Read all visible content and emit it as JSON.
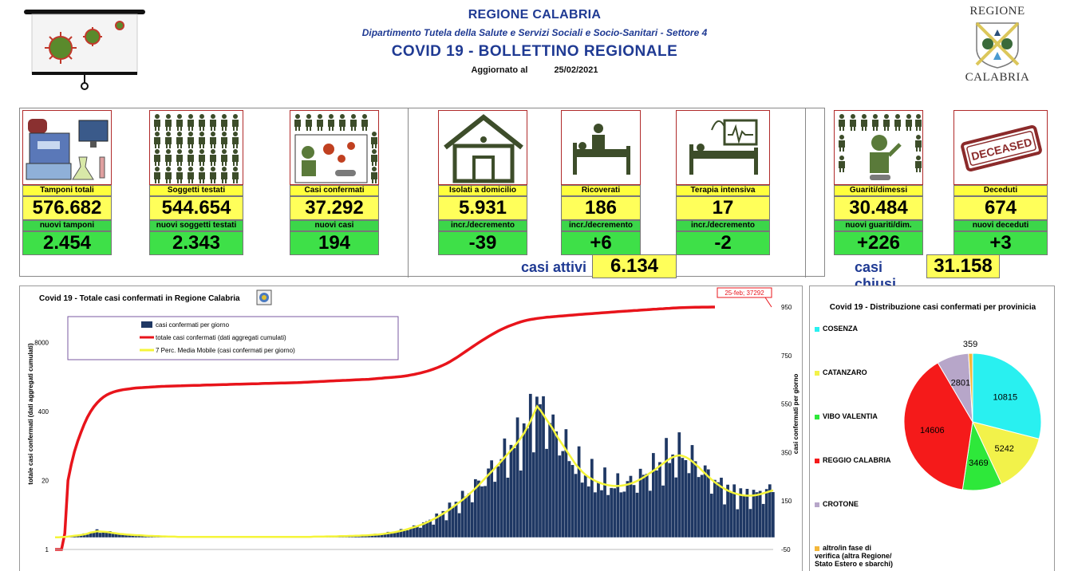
{
  "header": {
    "region": "REGIONE CALABRIA",
    "department": "Dipartimento Tutela della Salute e Servizi Sociali e Socio-Sanitari - Settore 4",
    "title": "COVID 19 - BOLLETTINO REGIONALE",
    "updated_label": "Aggiornato al",
    "updated_date": "25/02/2021",
    "crest_top": "REGIONE",
    "crest_bottom": "CALABRIA"
  },
  "stats": [
    {
      "label": "Tamponi totali",
      "value": "576.682",
      "sub_label": "nuovi tamponi",
      "sub_value": "2.454",
      "icon": "lab-equipment-icon"
    },
    {
      "label": "Soggetti testati",
      "value": "544.654",
      "sub_label": "nuovi soggetti testati",
      "sub_value": "2.343",
      "icon": "people-grid-icon"
    },
    {
      "label": "Casi confermati",
      "value": "37.292",
      "sub_label": "nuovi casi",
      "sub_value": "194",
      "icon": "infected-person-icon"
    },
    {
      "label": "Isolati a domicilio",
      "value": "5.931",
      "sub_label": "incr./decremento",
      "sub_value": "-39",
      "icon": "house-icon"
    },
    {
      "label": "Ricoverati",
      "value": "186",
      "sub_label": "incr./decremento",
      "sub_value": "+6",
      "icon": "hospital-bed-icon"
    },
    {
      "label": "Terapia intensiva",
      "value": "17",
      "sub_label": "incr./decremento",
      "sub_value": "-2",
      "icon": "icu-monitor-icon"
    },
    {
      "label": "Guariti/dimessi",
      "value": "30.484",
      "sub_label": "nuovi guariti/dim.",
      "sub_value": "+226",
      "icon": "recovered-person-icon"
    },
    {
      "label": "Deceduti",
      "value": "674",
      "sub_label": "nuovi deceduti",
      "sub_value": "+3",
      "icon": "deceased-stamp-icon"
    }
  ],
  "summary": {
    "active_label": "casi attivi",
    "active_value": "6.134",
    "closed_label": "casi chiusi",
    "closed_value": "31.158"
  },
  "deceased_stamp": "DECEASED",
  "colors": {
    "yellow": "#ffff5a",
    "green": "#3ee048",
    "blue": "#1f3a93",
    "bar": "#1f3864",
    "cumulative": "#e8141b",
    "moving_avg": "#f5f53a"
  },
  "chart_data": [
    {
      "type": "bar",
      "title": "Covid 19 - Totale casi confermati in Regione Calabria",
      "ylabel": "totale casi confermati (dati aggregati cumulati)",
      "y2label": "casi confermati  per giorno",
      "yscale": "log",
      "y_ticks": [
        "1",
        "20",
        "400",
        "8000"
      ],
      "y2_ticks": [
        "-50",
        "150",
        "350",
        "550",
        "750",
        "950"
      ],
      "ylim": [
        1,
        37292
      ],
      "y2lim": [
        -50,
        950
      ],
      "grid": false,
      "legend_position": "top-left",
      "annotation": "25-feb; 37292",
      "series": [
        {
          "name": "casi confermati per giorno",
          "kind": "bar",
          "axis": "right",
          "values": [
            0,
            0,
            1,
            2,
            3,
            5,
            7,
            8,
            10,
            12,
            15,
            20,
            22,
            25,
            24,
            23,
            22,
            20,
            18,
            16,
            14,
            13,
            12,
            11,
            10,
            9,
            9,
            8,
            7,
            6,
            6,
            5,
            5,
            4,
            4,
            3,
            3,
            3,
            2,
            2,
            2,
            2,
            2,
            2,
            2,
            2,
            2,
            2,
            2,
            2,
            2,
            2,
            2,
            2,
            2,
            2,
            2,
            2,
            2,
            2,
            2,
            2,
            2,
            2,
            2,
            2,
            2,
            2,
            2,
            2,
            2,
            2,
            2,
            2,
            2,
            2,
            2,
            2,
            2,
            2,
            3,
            3,
            3,
            3,
            4,
            4,
            4,
            4,
            5,
            5,
            5,
            6,
            6,
            7,
            7,
            8,
            8,
            9,
            10,
            11,
            12,
            13,
            15,
            17,
            19,
            21,
            24,
            27,
            30,
            34,
            38,
            42,
            46,
            51,
            56,
            62,
            68,
            75,
            82,
            90,
            98,
            106,
            115,
            125,
            135,
            145,
            155,
            166,
            178,
            190,
            203,
            216,
            230,
            244,
            258,
            272,
            286,
            300,
            315,
            330,
            345,
            360,
            375,
            392,
            410,
            430,
            455,
            480,
            510,
            540,
            525,
            505,
            485,
            465,
            445,
            420,
            400,
            380,
            360,
            340,
            320,
            300,
            285,
            270,
            258,
            248,
            240,
            233,
            227,
            222,
            218,
            215,
            213,
            212,
            212,
            213,
            215,
            218,
            222,
            227,
            233,
            240,
            248,
            257,
            266,
            275,
            285,
            295,
            305,
            315,
            324,
            331,
            336,
            338,
            336,
            331,
            323,
            313,
            301,
            289,
            276,
            263,
            250,
            238,
            227,
            217,
            208,
            200,
            193,
            187,
            182,
            178,
            175,
            173,
            172,
            172,
            173,
            175,
            178,
            182,
            186,
            190,
            194
          ]
        },
        {
          "name": "totale casi confermati (dati aggregati cumulati)",
          "kind": "line",
          "axis": "left",
          "values": [
            1,
            1,
            1,
            2,
            20,
            40,
            70,
            110,
            160,
            230,
            310,
            400,
            490,
            580,
            670,
            750,
            820,
            880,
            930,
            970,
            1000,
            1030,
            1050,
            1070,
            1090,
            1110,
            1120,
            1130,
            1140,
            1150,
            1160,
            1170,
            1180,
            1190,
            1195,
            1200,
            1205,
            1210,
            1215,
            1220,
            1225,
            1230,
            1235,
            1240,
            1245,
            1250,
            1255,
            1260,
            1265,
            1270,
            1275,
            1280,
            1285,
            1290,
            1295,
            1300,
            1305,
            1310,
            1315,
            1320,
            1325,
            1330,
            1335,
            1340,
            1345,
            1350,
            1355,
            1360,
            1365,
            1370,
            1375,
            1380,
            1385,
            1390,
            1395,
            1400,
            1410,
            1420,
            1430,
            1440,
            1450,
            1460,
            1470,
            1480,
            1490,
            1500,
            1510,
            1520,
            1530,
            1540,
            1550,
            1560,
            1570,
            1580,
            1590,
            1600,
            1610,
            1620,
            1640,
            1660,
            1680,
            1700,
            1720,
            1740,
            1760,
            1780,
            1800,
            1830,
            1860,
            1900,
            1950,
            2000,
            2060,
            2130,
            2210,
            2300,
            2400,
            2520,
            2660,
            2820,
            3000,
            3200,
            3450,
            3750,
            4100,
            4500,
            4950,
            5450,
            6000,
            6600,
            7250,
            7950,
            8700,
            9500,
            10350,
            11250,
            12200,
            13150,
            14100,
            15050,
            16000,
            16900,
            17800,
            18700,
            19600,
            20400,
            21100,
            21700,
            22200,
            22700,
            23150,
            23550,
            23900,
            24200,
            24500,
            24800,
            25100,
            25400,
            25700,
            26000,
            26300,
            26600,
            26900,
            27200,
            27500,
            27800,
            28100,
            28400,
            28700,
            29000,
            29300,
            29600,
            29900,
            30200,
            30500,
            30800,
            31100,
            31400,
            31700,
            32000,
            32300,
            32600,
            32900,
            33200,
            33500,
            33800,
            34100,
            34400,
            34700,
            35000,
            35300,
            35600,
            35900,
            36200,
            36400,
            36550,
            36700,
            36800,
            36900,
            37000,
            37100,
            37150,
            37200,
            37250,
            37292
          ]
        },
        {
          "name": "7 Perc. Media Mobile (casi confermati per giorno)",
          "kind": "line",
          "axis": "right",
          "values": [
            0,
            0,
            1,
            2,
            3,
            5,
            7,
            8,
            10,
            12,
            15,
            20,
            22,
            25,
            24,
            23,
            22,
            20,
            18,
            16,
            14,
            13,
            12,
            11,
            10,
            9,
            9,
            8,
            7,
            6,
            6,
            5,
            5,
            4,
            4,
            3,
            3,
            3,
            2,
            2,
            2,
            2,
            2,
            2,
            2,
            2,
            2,
            2,
            2,
            2,
            2,
            2,
            2,
            2,
            2,
            2,
            2,
            2,
            2,
            2,
            2,
            2,
            2,
            2,
            2,
            2,
            2,
            2,
            2,
            2,
            2,
            2,
            2,
            2,
            2,
            2,
            2,
            2,
            2,
            2,
            3,
            3,
            3,
            3,
            4,
            4,
            4,
            4,
            5,
            5,
            5,
            6,
            6,
            7,
            7,
            8,
            8,
            9,
            10,
            11,
            12,
            13,
            15,
            17,
            19,
            21,
            24,
            27,
            30,
            34,
            38,
            42,
            46,
            51,
            56,
            62,
            68,
            75,
            82,
            90,
            98,
            106,
            115,
            125,
            135,
            145,
            155,
            166,
            178,
            190,
            203,
            216,
            230,
            244,
            258,
            272,
            286,
            300,
            315,
            330,
            345,
            360,
            375,
            392,
            410,
            430,
            455,
            480,
            510,
            540,
            525,
            505,
            485,
            465,
            445,
            420,
            400,
            380,
            360,
            340,
            320,
            300,
            285,
            270,
            258,
            248,
            240,
            233,
            227,
            222,
            218,
            215,
            213,
            212,
            212,
            213,
            215,
            218,
            222,
            227,
            233,
            240,
            248,
            257,
            266,
            275,
            285,
            295,
            305,
            315,
            324,
            331,
            336,
            338,
            336,
            331,
            323,
            313,
            301,
            289,
            276,
            263,
            250,
            238,
            227,
            217,
            208,
            200,
            193,
            187,
            182,
            178,
            175,
            173,
            172,
            172,
            173,
            175,
            178,
            182,
            186,
            190,
            194
          ]
        }
      ]
    },
    {
      "type": "pie",
      "title": "Covid 19 - Distribuzione casi confermati per provinicia",
      "legend_position": "left",
      "slices": [
        {
          "name": "COSENZA",
          "value": 10815,
          "color": "#29f0f0"
        },
        {
          "name": "CATANZARO",
          "value": 5242,
          "color": "#f2f24a"
        },
        {
          "name": "VIBO VALENTIA",
          "value": 3469,
          "color": "#2ee83a"
        },
        {
          "name": "REGGIO CALABRIA",
          "value": 14606,
          "color": "#f51a1a"
        },
        {
          "name": "CROTONE",
          "value": 2801,
          "color": "#b7a6c9"
        },
        {
          "name": "altro/in fase di verifica (altra Regione/ Stato Estero e sbarchi)",
          "value": 359,
          "color": "#f4b73a"
        }
      ]
    }
  ]
}
